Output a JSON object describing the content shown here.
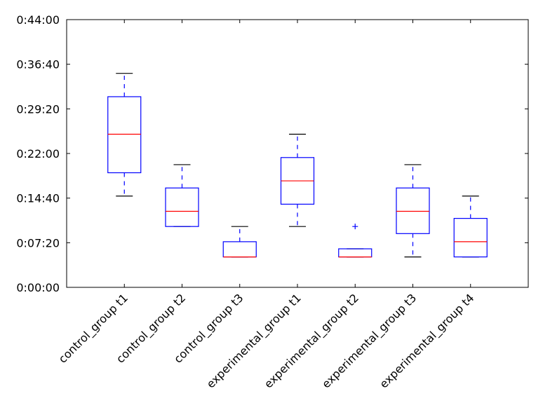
{
  "chart_data": {
    "type": "box",
    "title": "",
    "xlabel": "",
    "ylabel": "",
    "y_unit": "seconds",
    "ylim": [
      0,
      2640
    ],
    "yticks": [
      {
        "value": 0,
        "label": "0:00:00"
      },
      {
        "value": 440,
        "label": "0:07:20"
      },
      {
        "value": 880,
        "label": "0:14:40"
      },
      {
        "value": 1320,
        "label": "0:22:00"
      },
      {
        "value": 1760,
        "label": "0:29:20"
      },
      {
        "value": 2200,
        "label": "0:36:40"
      },
      {
        "value": 2640,
        "label": "0:44:00"
      }
    ],
    "categories": [
      "control_group t1",
      "control_group t2",
      "control_group t3",
      "experimental_group t1",
      "experimental_group t2",
      "experimental_group t3",
      "experimental_group t4"
    ],
    "boxes": [
      {
        "whisker_low": 900,
        "q1": 1130,
        "median": 1510,
        "q3": 1880,
        "whisker_high": 2110,
        "outliers": []
      },
      {
        "whisker_low": 600,
        "q1": 600,
        "median": 750,
        "q3": 980,
        "whisker_high": 1210,
        "outliers": []
      },
      {
        "whisker_low": 300,
        "q1": 300,
        "median": 300,
        "q3": 450,
        "whisker_high": 600,
        "outliers": []
      },
      {
        "whisker_low": 600,
        "q1": 820,
        "median": 1050,
        "q3": 1280,
        "whisker_high": 1510,
        "outliers": []
      },
      {
        "whisker_low": 300,
        "q1": 300,
        "median": 300,
        "q3": 380,
        "whisker_high": 380,
        "outliers": [
          600
        ]
      },
      {
        "whisker_low": 300,
        "q1": 530,
        "median": 750,
        "q3": 980,
        "whisker_high": 1210,
        "outliers": []
      },
      {
        "whisker_low": 300,
        "q1": 300,
        "median": 450,
        "q3": 680,
        "whisker_high": 900,
        "outliers": []
      }
    ],
    "colors": {
      "box": "#0000ff",
      "median": "#ff0000",
      "whisker": "#0000ff",
      "cap": "#000000",
      "outlier": "#0000ff",
      "axis": "#000000"
    },
    "grid": false,
    "legend": "none"
  }
}
